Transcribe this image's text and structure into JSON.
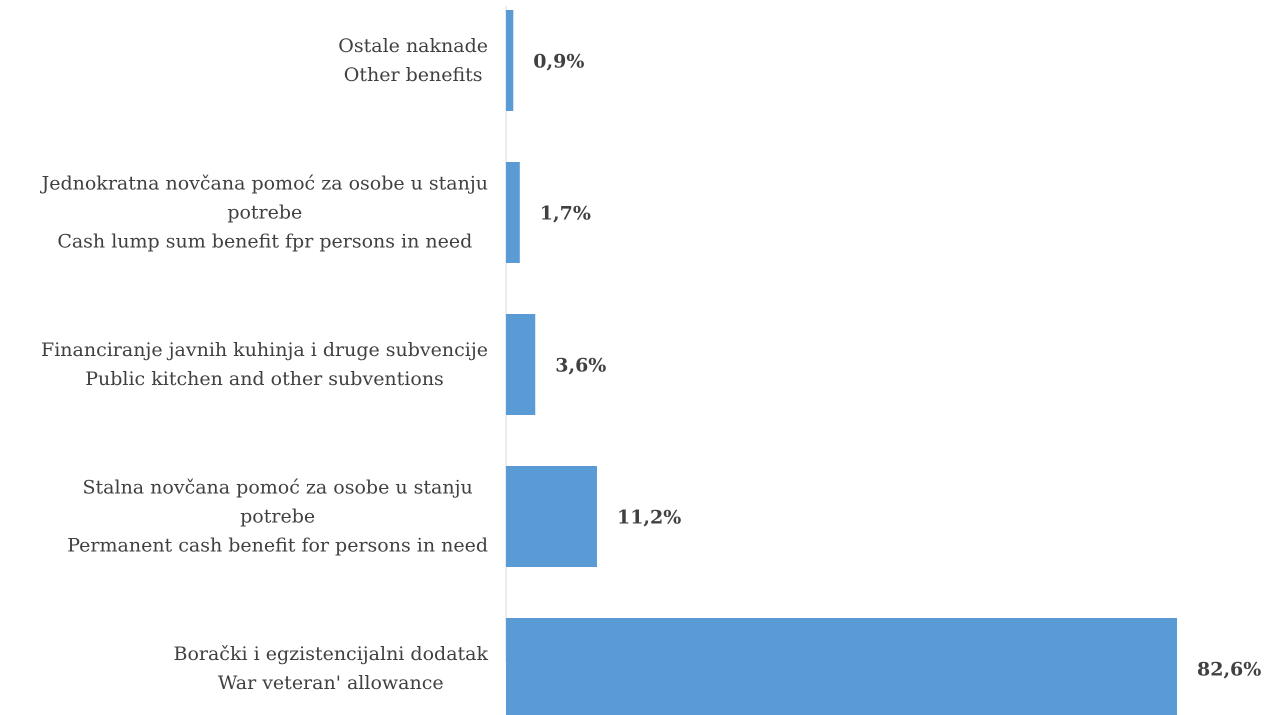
{
  "chart_data": {
    "type": "bar",
    "orientation": "horizontal",
    "categories": [
      [
        "Ostale naknade",
        "Other benefits"
      ],
      [
        "Jednokratna novčana pomoć za osobe u stanju",
        "potrebe",
        "Cash lump sum benefit fpr persons in need"
      ],
      [
        "Financiranje javnih kuhinja i druge subvencije",
        "Public kitchen and other subventions"
      ],
      [
        "Stalna novčana pomoć za osobe u stanju",
        "potrebe",
        "Permanent cash benefit for persons in need"
      ],
      [
        "Borački i egzistencijalni dodatak",
        "War veteran' allowance"
      ]
    ],
    "values": [
      0.9,
      1.7,
      3.6,
      11.2,
      82.6
    ],
    "value_labels": [
      "0,9%",
      "1,7%",
      "3,6%",
      "11,2%",
      "82,6%"
    ],
    "unit": "%",
    "xlim": [
      0,
      82.6
    ],
    "grid": false,
    "legend": "none",
    "bar_color": "#5b9bd5"
  }
}
